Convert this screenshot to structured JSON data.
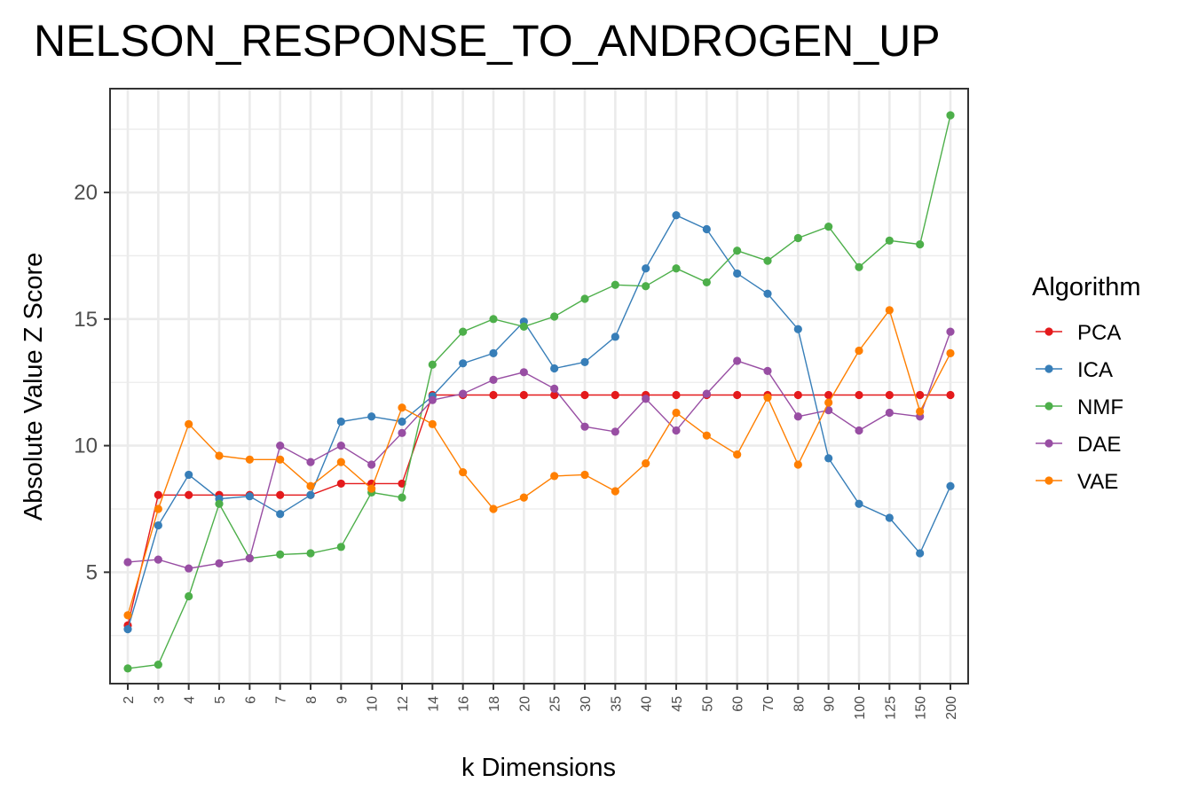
{
  "chart_data": {
    "type": "line",
    "title": "NELSON_RESPONSE_TO_ANDROGEN_UP",
    "xlabel": "k Dimensions",
    "ylabel": "Absolute Value Z Score",
    "categories": [
      "2",
      "3",
      "4",
      "5",
      "6",
      "7",
      "8",
      "9",
      "10",
      "12",
      "14",
      "16",
      "18",
      "20",
      "25",
      "30",
      "35",
      "40",
      "45",
      "50",
      "60",
      "70",
      "80",
      "90",
      "100",
      "125",
      "150",
      "200"
    ],
    "yticks": [
      5,
      10,
      15,
      20
    ],
    "ylim": [
      0.6,
      24.1
    ],
    "grid": true,
    "legend": {
      "title": "Algorithm",
      "position": "right"
    },
    "series": [
      {
        "name": "PCA",
        "color": "#e41a1c",
        "values": [
          2.9,
          8.05,
          8.05,
          8.05,
          8.05,
          8.05,
          8.05,
          8.5,
          8.5,
          8.5,
          12.0,
          12.0,
          12.0,
          12.0,
          12.0,
          12.0,
          12.0,
          12.0,
          12.0,
          12.0,
          12.0,
          12.0,
          12.0,
          12.0,
          12.0,
          12.0,
          12.0,
          12.0
        ]
      },
      {
        "name": "ICA",
        "color": "#377eb8",
        "values": [
          2.75,
          6.85,
          8.85,
          7.9,
          8.0,
          7.3,
          8.05,
          10.95,
          11.15,
          10.95,
          11.95,
          13.25,
          13.65,
          14.9,
          13.05,
          13.3,
          14.3,
          17.0,
          19.1,
          18.55,
          16.8,
          16.0,
          14.6,
          9.5,
          7.7,
          7.15,
          5.75,
          8.4
        ]
      },
      {
        "name": "NMF",
        "color": "#4daf4a",
        "values": [
          1.2,
          1.35,
          4.05,
          7.7,
          5.55,
          5.7,
          5.75,
          6.0,
          8.15,
          7.95,
          13.2,
          14.5,
          15.0,
          14.7,
          15.1,
          15.8,
          16.35,
          16.3,
          17.0,
          16.45,
          17.7,
          17.3,
          18.2,
          18.65,
          17.05,
          18.1,
          17.95,
          23.05
        ]
      },
      {
        "name": "DAE",
        "color": "#984ea3",
        "values": [
          5.4,
          5.5,
          5.15,
          5.35,
          5.55,
          10.0,
          9.35,
          10.0,
          9.25,
          10.5,
          11.8,
          12.05,
          12.6,
          12.9,
          12.25,
          10.75,
          10.55,
          11.85,
          10.6,
          12.05,
          13.35,
          12.95,
          11.15,
          11.4,
          10.6,
          11.3,
          11.15,
          14.5
        ]
      },
      {
        "name": "VAE",
        "color": "#ff7f00",
        "values": [
          3.3,
          7.5,
          10.85,
          9.6,
          9.45,
          9.45,
          8.4,
          9.35,
          8.3,
          11.5,
          10.85,
          8.95,
          7.5,
          7.95,
          8.8,
          8.85,
          8.2,
          9.3,
          11.3,
          10.4,
          9.65,
          11.9,
          9.25,
          11.7,
          13.75,
          15.35,
          11.35,
          13.65
        ]
      }
    ]
  }
}
